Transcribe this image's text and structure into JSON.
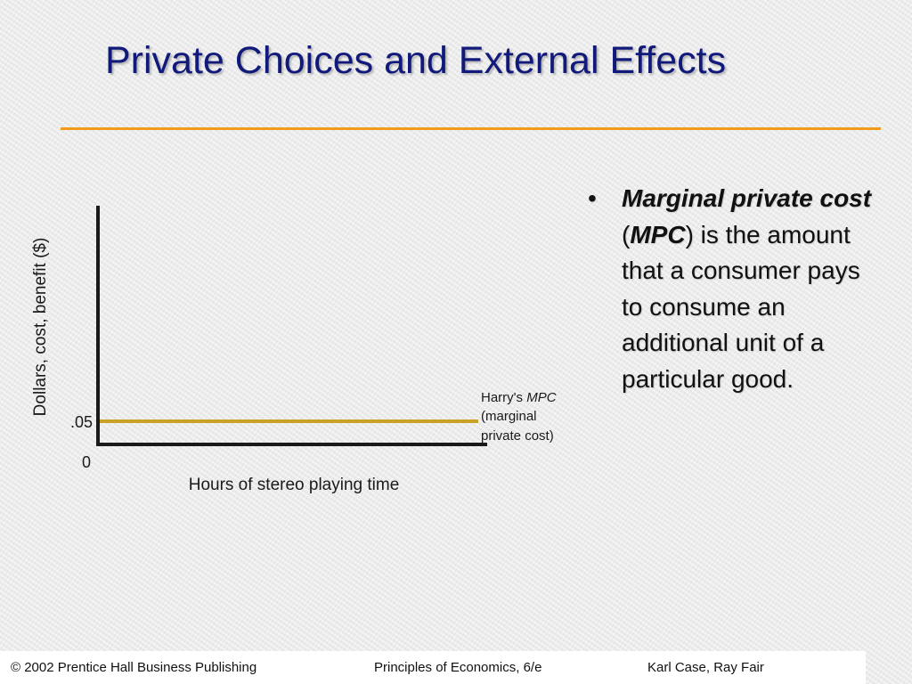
{
  "slide": {
    "title": "Private Choices and External Effects"
  },
  "chart_data": {
    "type": "line",
    "ylabel": "Dollars, cost, benefit ($)",
    "xlabel": "Hours of stereo playing time",
    "y_ticks": [
      ".05"
    ],
    "origin_label": "0",
    "series": [
      {
        "name": "Harry's MPC (marginal private cost)",
        "color": "#c9a227",
        "y": 0.05
      }
    ],
    "annotation": {
      "prefix": "Harry's ",
      "term": "MPC",
      "line2": "(marginal",
      "line3": "private cost)"
    },
    "grid": false,
    "legend": "none"
  },
  "bullet": {
    "marker": "•",
    "term_bold_1": "Marginal private cost",
    "open_paren": " (",
    "term_bold_2": "MPC",
    "rest": ") is the amount that a consumer pays to consume an additional unit of a particular good."
  },
  "footer": {
    "left": "© 2002 Prentice Hall Business Publishing",
    "center": "Principles of Economics, 6/e",
    "right": "Karl Case, Ray Fair"
  },
  "colors": {
    "title": "#111a7a",
    "rule": "#f19b1c",
    "axis": "#1a1a1a",
    "mpc_line": "#c9a227"
  }
}
